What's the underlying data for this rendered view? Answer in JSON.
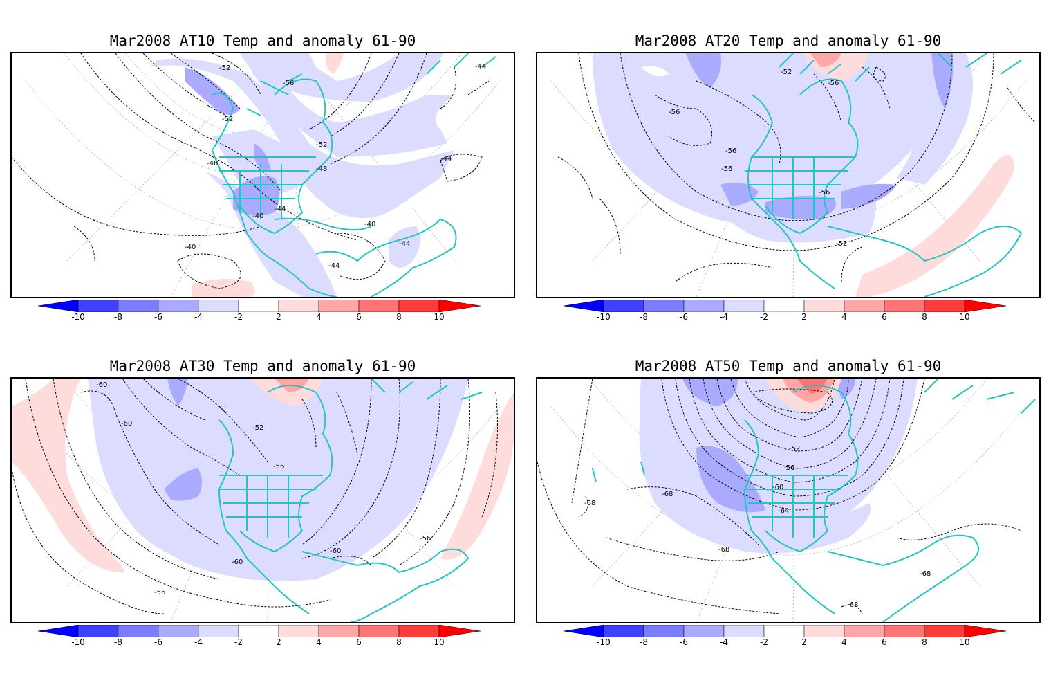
{
  "colors": {
    "blue1": "#dcdcff",
    "blue2": "#aaaaff",
    "blue3": "#7c7cff",
    "blue4": "#4040ff",
    "blue5": "#0000ff",
    "red1": "#ffdcdc",
    "red2": "#ffa6a6",
    "red3": "#ff7474",
    "red4": "#ff3c3c",
    "red5": "#ff0000",
    "coast": "#22c4c4",
    "contour": "#000000",
    "grid": "#bbbbbb"
  },
  "colorbar": {
    "ticks": [
      "-10",
      "-8",
      "-6",
      "-4",
      "-2",
      "2",
      "4",
      "6",
      "8",
      "10"
    ]
  },
  "panels": [
    {
      "title": "Mar2008 AT10 Temp and anomaly 61-90",
      "contour_labels": [
        "-52",
        "-56",
        "-52",
        "-52",
        "-48",
        "-48",
        "-44",
        "-44",
        "-40",
        "-40",
        "-40",
        "-44",
        "-44",
        "-44"
      ]
    },
    {
      "title": "Mar2008 AT20 Temp and anomaly 61-90",
      "contour_labels": [
        "-52",
        "-56",
        "-56",
        "-56",
        "-56",
        "-56",
        "-52"
      ]
    },
    {
      "title": "Mar2008 AT30 Temp and anomaly 61-90",
      "contour_labels": [
        "-60",
        "-60",
        "-52",
        "-56",
        "-60",
        "-60",
        "-56",
        "-56"
      ]
    },
    {
      "title": "Mar2008 AT50 Temp and anomaly 61-90",
      "contour_labels": [
        "-52",
        "-56",
        "-60",
        "-64",
        "-68",
        "-68",
        "-68",
        "-68",
        "-68"
      ]
    }
  ]
}
